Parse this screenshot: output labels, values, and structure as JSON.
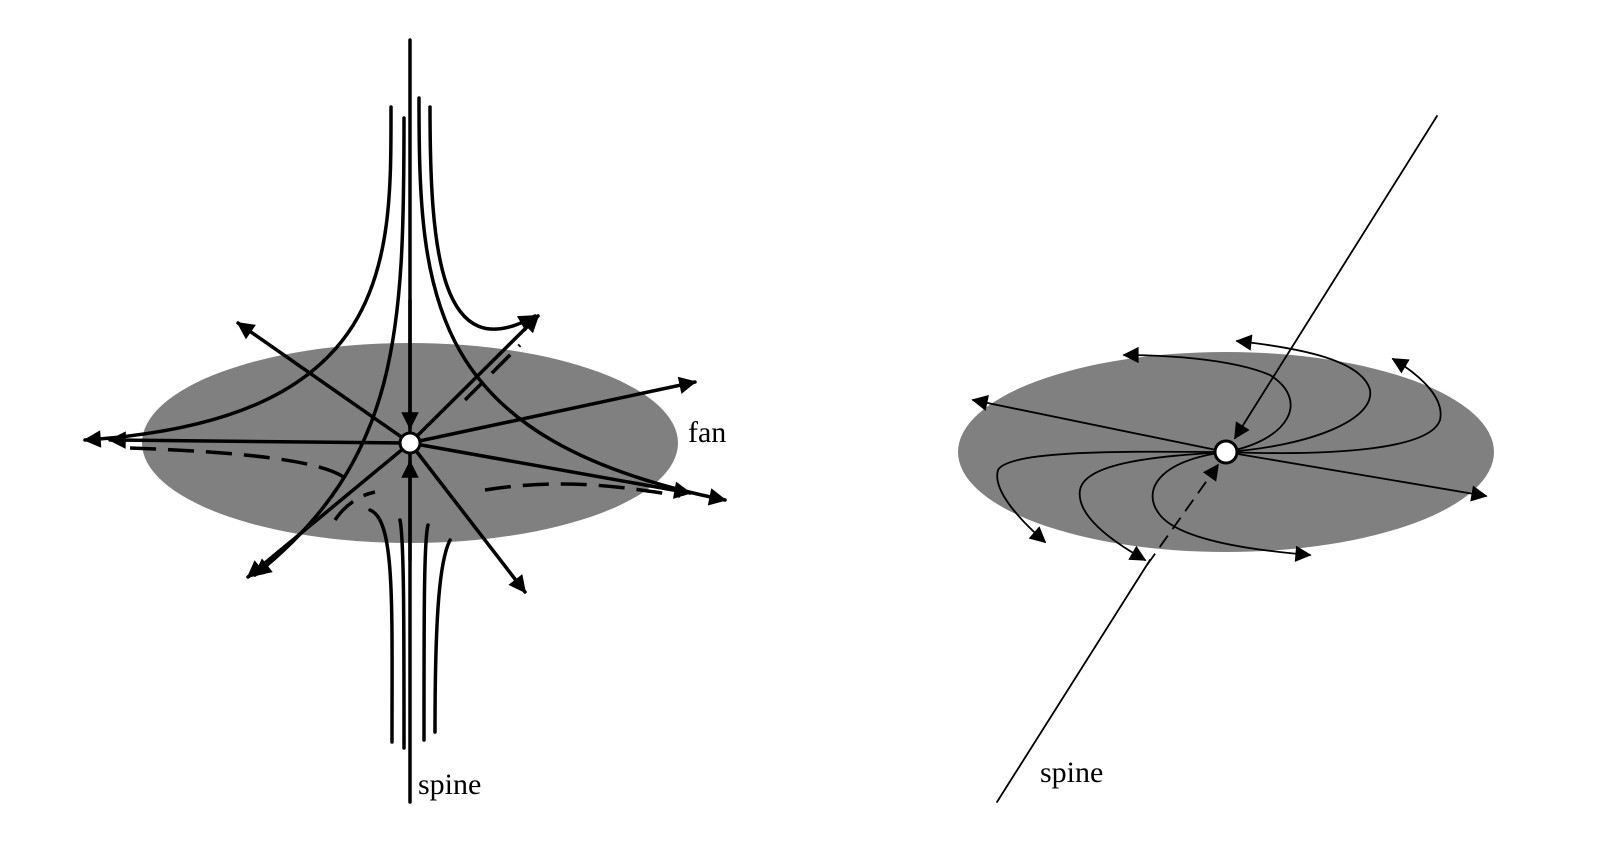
{
  "left_panel": {
    "fan_label": "fan",
    "spine_label": "spine",
    "fan_color": "#808080"
  },
  "right_panel": {
    "spine_label": "spine",
    "fan_color": "#808080"
  }
}
